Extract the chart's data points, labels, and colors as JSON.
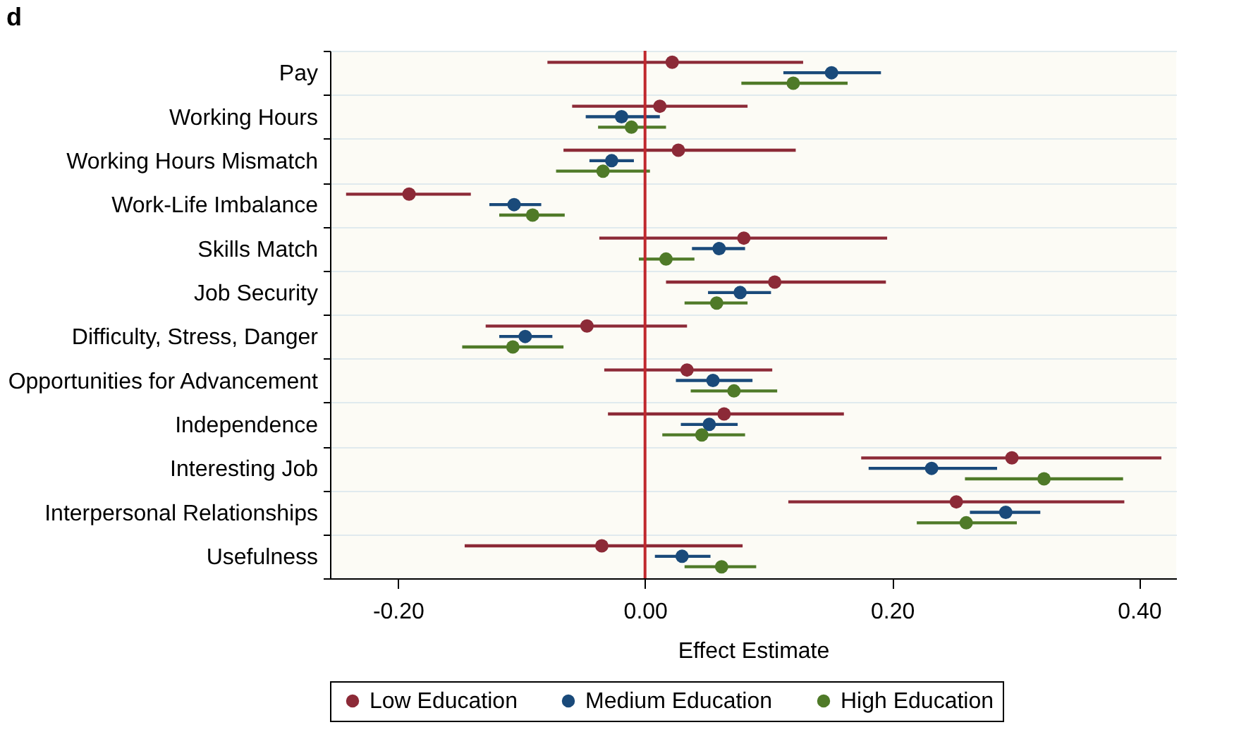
{
  "chart_data": {
    "type": "scatter",
    "orientation": "horizontal",
    "title": "d",
    "xlabel": "Effect Estimate",
    "categories": [
      "Pay",
      "Working Hours",
      "Working Hours Mismatch",
      "Work-Life Imbalance",
      "Skills Match",
      "Job Security",
      "Difficulty, Stress, Danger",
      "Opportunities for Advancement",
      "Independence",
      "Interesting Job",
      "Interpersonal Relationships",
      "Usefulness"
    ],
    "series": [
      {
        "name": "Low Education",
        "color": "#8c2a37",
        "values": [
          0.022,
          0.012,
          0.027,
          -0.191,
          0.08,
          0.105,
          -0.047,
          0.034,
          0.064,
          0.297,
          0.252,
          -0.035
        ],
        "errors": [
          [
            -0.079,
            0.128
          ],
          [
            -0.059,
            0.083
          ],
          [
            -0.066,
            0.122
          ],
          [
            -0.242,
            -0.141
          ],
          [
            -0.037,
            0.196
          ],
          [
            0.017,
            0.195
          ],
          [
            -0.129,
            0.034
          ],
          [
            -0.033,
            0.103
          ],
          [
            -0.03,
            0.161
          ],
          [
            0.175,
            0.418
          ],
          [
            0.116,
            0.388
          ],
          [
            -0.146,
            0.079
          ]
        ]
      },
      {
        "name": "Medium Education",
        "color": "#1a4a7a",
        "values": [
          0.151,
          -0.019,
          -0.027,
          -0.106,
          0.06,
          0.077,
          -0.097,
          0.055,
          0.052,
          0.232,
          0.292,
          0.03
        ],
        "errors": [
          [
            0.112,
            0.191
          ],
          [
            -0.048,
            0.012
          ],
          [
            -0.045,
            -0.009
          ],
          [
            -0.126,
            -0.084
          ],
          [
            0.038,
            0.081
          ],
          [
            0.051,
            0.102
          ],
          [
            -0.118,
            -0.075
          ],
          [
            0.025,
            0.087
          ],
          [
            0.029,
            0.075
          ],
          [
            0.181,
            0.285
          ],
          [
            0.263,
            0.32
          ],
          [
            0.008,
            0.053
          ]
        ]
      },
      {
        "name": "High Education",
        "color": "#4f7a28",
        "values": [
          0.12,
          -0.011,
          -0.034,
          -0.091,
          0.017,
          0.058,
          -0.107,
          0.072,
          0.046,
          0.323,
          0.26,
          0.062
        ],
        "errors": [
          [
            0.078,
            0.164
          ],
          [
            -0.038,
            0.017
          ],
          [
            -0.072,
            0.004
          ],
          [
            -0.118,
            -0.065
          ],
          [
            -0.005,
            0.04
          ],
          [
            0.032,
            0.083
          ],
          [
            -0.148,
            -0.066
          ],
          [
            0.037,
            0.107
          ],
          [
            0.014,
            0.081
          ],
          [
            0.259,
            0.387
          ],
          [
            0.22,
            0.301
          ],
          [
            0.032,
            0.09
          ]
        ]
      }
    ],
    "xlim": [
      -0.255,
      0.43
    ],
    "xticks": [
      {
        "value": -0.2,
        "label": "-0.20"
      },
      {
        "value": 0,
        "label": "0.00"
      },
      {
        "value": 0.2,
        "label": "0.20"
      },
      {
        "value": 0.4,
        "label": "0.40"
      }
    ],
    "ref_lines": [
      {
        "axis": "x",
        "value": 0,
        "color": "#c0282d"
      }
    ],
    "grid": "y",
    "legend": "bottom",
    "marker": "circle"
  }
}
